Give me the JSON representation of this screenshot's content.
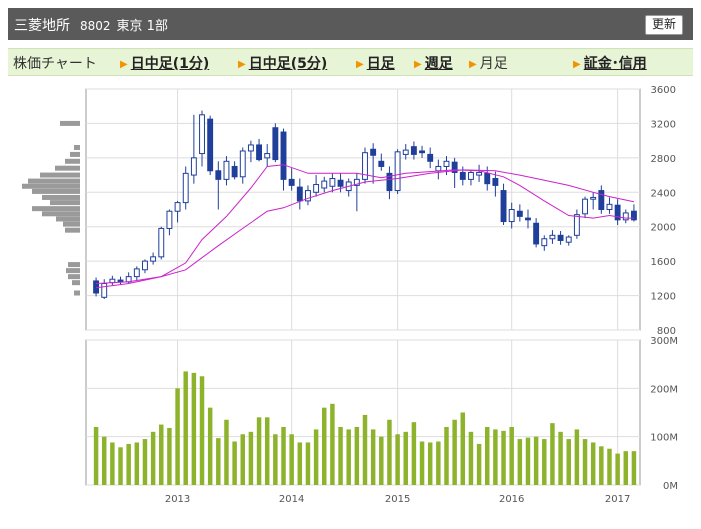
{
  "header": {
    "company": "三菱地所",
    "code": "8802",
    "market": "東京 1部",
    "refresh_label": "更新"
  },
  "tabs": {
    "title": "株価チャート",
    "intraday_1": "日中足(1分)",
    "intraday_5": "日中足(5分)",
    "daily": "日足",
    "weekly": "週足",
    "monthly": "月足",
    "margin": "証金･信用"
  },
  "colors": {
    "candle_down": "#1f3f9a",
    "candle_up_fill": "#ffffff",
    "ma": "#cc22cc",
    "volume": "#8db32c",
    "volume_profile": "#9a9a9a",
    "tab_arrow": "#f29400"
  },
  "chart_data": [
    {
      "type": "candlestick",
      "ylim": [
        800,
        3600
      ],
      "yticks": [
        "800",
        "1200",
        "1600",
        "2000",
        "2400",
        "2800",
        "3200",
        "3600"
      ],
      "ohlc": [
        [
          1370,
          1410,
          1190,
          1230
        ],
        [
          1180,
          1390,
          1160,
          1340
        ],
        [
          1350,
          1430,
          1320,
          1390
        ],
        [
          1380,
          1420,
          1330,
          1360
        ],
        [
          1360,
          1470,
          1340,
          1420
        ],
        [
          1420,
          1540,
          1380,
          1510
        ],
        [
          1500,
          1620,
          1460,
          1600
        ],
        [
          1600,
          1700,
          1560,
          1650
        ],
        [
          1650,
          2000,
          1620,
          1980
        ],
        [
          1980,
          2200,
          1900,
          2180
        ],
        [
          2180,
          2300,
          2050,
          2280
        ],
        [
          2280,
          2700,
          2200,
          2620
        ],
        [
          2600,
          3300,
          2500,
          2800
        ],
        [
          2850,
          3350,
          2700,
          3300
        ],
        [
          3250,
          3290,
          2600,
          2650
        ],
        [
          2650,
          2760,
          2200,
          2550
        ],
        [
          2550,
          2820,
          2480,
          2760
        ],
        [
          2700,
          2760,
          2550,
          2580
        ],
        [
          2580,
          2920,
          2500,
          2880
        ],
        [
          2880,
          3000,
          2750,
          2950
        ],
        [
          2950,
          3020,
          2760,
          2780
        ],
        [
          2800,
          2960,
          2700,
          2850
        ],
        [
          3150,
          3200,
          2750,
          2780
        ],
        [
          3100,
          3140,
          2420,
          2550
        ],
        [
          2550,
          2680,
          2420,
          2480
        ],
        [
          2460,
          2560,
          2200,
          2300
        ],
        [
          2300,
          2480,
          2250,
          2420
        ],
        [
          2400,
          2600,
          2350,
          2490
        ],
        [
          2450,
          2580,
          2400,
          2530
        ],
        [
          2470,
          2620,
          2400,
          2560
        ],
        [
          2540,
          2620,
          2400,
          2470
        ],
        [
          2420,
          2560,
          2350,
          2520
        ],
        [
          2480,
          2620,
          2180,
          2550
        ],
        [
          2550,
          2920,
          2500,
          2860
        ],
        [
          2900,
          2970,
          2500,
          2830
        ],
        [
          2760,
          2850,
          2650,
          2700
        ],
        [
          2620,
          2700,
          2320,
          2420
        ],
        [
          2420,
          2900,
          2380,
          2870
        ],
        [
          2840,
          2960,
          2780,
          2890
        ],
        [
          2930,
          2990,
          2780,
          2840
        ],
        [
          2880,
          2940,
          2800,
          2860
        ],
        [
          2840,
          2920,
          2680,
          2760
        ],
        [
          2650,
          2780,
          2550,
          2700
        ],
        [
          2700,
          2820,
          2600,
          2760
        ],
        [
          2750,
          2800,
          2450,
          2630
        ],
        [
          2630,
          2700,
          2480,
          2550
        ],
        [
          2550,
          2660,
          2480,
          2630
        ],
        [
          2600,
          2720,
          2520,
          2630
        ],
        [
          2620,
          2700,
          2420,
          2500
        ],
        [
          2560,
          2640,
          2350,
          2480
        ],
        [
          2420,
          2500,
          2020,
          2060
        ],
        [
          2060,
          2280,
          1980,
          2200
        ],
        [
          2180,
          2260,
          2060,
          2120
        ],
        [
          2100,
          2200,
          1980,
          2080
        ],
        [
          2040,
          2100,
          1760,
          1800
        ],
        [
          1780,
          1900,
          1720,
          1860
        ],
        [
          1860,
          1960,
          1800,
          1900
        ],
        [
          1900,
          1950,
          1790,
          1840
        ],
        [
          1820,
          1900,
          1780,
          1880
        ],
        [
          1900,
          2200,
          1860,
          2140
        ],
        [
          2150,
          2350,
          2100,
          2320
        ],
        [
          2320,
          2400,
          2200,
          2340
        ],
        [
          2420,
          2480,
          2150,
          2200
        ],
        [
          2200,
          2340,
          2150,
          2260
        ],
        [
          2250,
          2320,
          2020,
          2080
        ],
        [
          2080,
          2200,
          2040,
          2160
        ],
        [
          2180,
          2260,
          2060,
          2080
        ]
      ],
      "moving_averages": [
        {
          "points": [
            [
              0,
              1290
            ],
            [
              4,
              1340
            ],
            [
              8,
              1420
            ],
            [
              11,
              1580
            ],
            [
              13,
              1850
            ],
            [
              16,
              2120
            ],
            [
              19,
              2450
            ],
            [
              21,
              2700
            ],
            [
              23,
              2720
            ],
            [
              26,
              2620
            ],
            [
              29,
              2620
            ],
            [
              32,
              2620
            ],
            [
              35,
              2570
            ],
            [
              38,
              2620
            ],
            [
              41,
              2640
            ],
            [
              44,
              2660
            ],
            [
              47,
              2650
            ],
            [
              50,
              2580
            ],
            [
              52,
              2480
            ],
            [
              55,
              2300
            ],
            [
              58,
              2130
            ],
            [
              61,
              2100
            ],
            [
              63,
              2130
            ],
            [
              65,
              2100
            ],
            [
              66,
              2100
            ]
          ]
        },
        {
          "points": [
            [
              0,
              1340
            ],
            [
              4,
              1360
            ],
            [
              8,
              1420
            ],
            [
              11,
              1500
            ],
            [
              13,
              1640
            ],
            [
              15,
              1780
            ],
            [
              18,
              1980
            ],
            [
              21,
              2180
            ],
            [
              23,
              2220
            ],
            [
              26,
              2330
            ],
            [
              29,
              2420
            ],
            [
              33,
              2520
            ],
            [
              37,
              2560
            ],
            [
              41,
              2620
            ],
            [
              45,
              2660
            ],
            [
              49,
              2650
            ],
            [
              52,
              2600
            ],
            [
              55,
              2540
            ],
            [
              58,
              2480
            ],
            [
              61,
              2400
            ],
            [
              63,
              2350
            ],
            [
              66,
              2290
            ]
          ]
        }
      ],
      "volume_profile": [
        {
          "price": 3200,
          "len": 20
        },
        {
          "price": 2920,
          "len": 6
        },
        {
          "price": 2840,
          "len": 10
        },
        {
          "price": 2760,
          "len": 15
        },
        {
          "price": 2680,
          "len": 25
        },
        {
          "price": 2600,
          "len": 40
        },
        {
          "price": 2530,
          "len": 52
        },
        {
          "price": 2470,
          "len": 58
        },
        {
          "price": 2410,
          "len": 48
        },
        {
          "price": 2340,
          "len": 38
        },
        {
          "price": 2280,
          "len": 30
        },
        {
          "price": 2210,
          "len": 48
        },
        {
          "price": 2150,
          "len": 38
        },
        {
          "price": 2090,
          "len": 24
        },
        {
          "price": 2030,
          "len": 17
        },
        {
          "price": 1960,
          "len": 15
        },
        {
          "price": 1560,
          "len": 12
        },
        {
          "price": 1490,
          "len": 14
        },
        {
          "price": 1420,
          "len": 12
        },
        {
          "price": 1350,
          "len": 8
        },
        {
          "price": 1230,
          "len": 6
        }
      ]
    },
    {
      "type": "bar",
      "ylim": [
        0,
        300
      ],
      "yticks": [
        "0M",
        "100M",
        "200M",
        "300M"
      ],
      "values": [
        120,
        100,
        88,
        78,
        85,
        88,
        95,
        110,
        125,
        118,
        200,
        235,
        232,
        225,
        160,
        97,
        135,
        90,
        105,
        110,
        140,
        140,
        105,
        120,
        105,
        88,
        88,
        115,
        160,
        168,
        120,
        115,
        120,
        145,
        115,
        100,
        135,
        105,
        110,
        130,
        90,
        88,
        90,
        120,
        135,
        150,
        110,
        85,
        120,
        115,
        112,
        120,
        95,
        98,
        100,
        95,
        128,
        110,
        95,
        115,
        95,
        88,
        80,
        75,
        65,
        70,
        70
      ],
      "x_labels": [
        "2013",
        "2014",
        "2015",
        "2016",
        "2017"
      ],
      "x_label_index": [
        10,
        24,
        37,
        51,
        64
      ]
    }
  ]
}
